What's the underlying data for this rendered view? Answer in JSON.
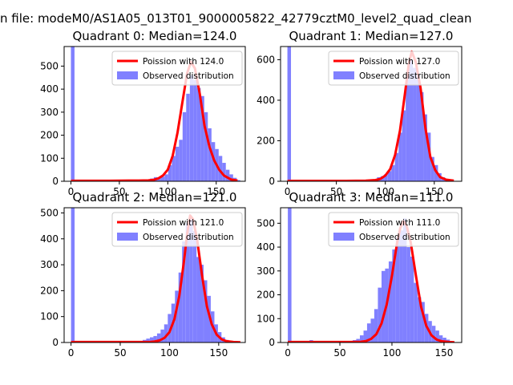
{
  "figure": {
    "suptitle": "n file: modeM0/AS1A05_013T01_9000005822_42779cztM0_level2_quad_clean"
  },
  "colors": {
    "bar": "#8080ff",
    "line": "#ff0000",
    "axis": "#000000",
    "background": "#ffffff"
  },
  "chart_data": [
    {
      "type": "bar",
      "title": "Quadrant 0: Median=124.0",
      "xlim": [
        -7,
        180
      ],
      "ylim": [
        0,
        585
      ],
      "xticks": [
        0,
        50,
        100,
        150
      ],
      "yticks": [
        0,
        100,
        200,
        300,
        400,
        500
      ],
      "legend": {
        "position": "top-right",
        "entries": [
          "Poission with 124.0",
          "Observed distribution"
        ]
      },
      "bin_width": 3.72,
      "histogram": {
        "x": [
          0,
          3.7,
          7.4,
          11.2,
          14.9,
          18.6,
          22.3,
          26.0,
          29.8,
          33.5,
          37.2,
          40.9,
          44.6,
          48.4,
          52.1,
          55.8,
          59.5,
          63.2,
          67.0,
          70.7,
          74.4,
          78.1,
          81.8,
          85.6,
          89.3,
          93.0,
          96.7,
          100.4,
          104.2,
          107.9,
          111.6,
          115.3,
          119.0,
          122.8,
          126.5,
          130.2,
          133.9,
          137.6,
          141.4,
          145.1,
          148.8,
          152.5,
          156.2,
          160.0,
          163.7,
          167.4,
          171.1
        ],
        "counts": [
          600,
          0,
          0,
          0,
          1,
          1,
          2,
          1,
          0,
          0,
          0,
          0,
          0,
          0,
          0,
          1,
          0,
          0,
          0,
          1,
          2,
          5,
          12,
          18,
          15,
          20,
          30,
          70,
          110,
          150,
          180,
          300,
          380,
          460,
          440,
          405,
          370,
          300,
          230,
          170,
          140,
          110,
          80,
          50,
          30,
          15,
          5
        ]
      },
      "fit": {
        "label": "Poission with 124.0",
        "x": [
          0,
          20,
          40,
          60,
          70,
          80,
          85,
          90,
          95,
          100,
          105,
          110,
          115,
          120,
          124,
          128,
          133,
          138,
          143,
          148,
          153,
          158,
          165,
          172
        ],
        "y": [
          2,
          2,
          2,
          3,
          3,
          4,
          6,
          12,
          25,
          50,
          110,
          210,
          340,
          470,
          518,
          490,
          380,
          240,
          150,
          90,
          50,
          25,
          8,
          3
        ]
      }
    },
    {
      "type": "bar",
      "title": "Quadrant 1: Median=127.0",
      "xlim": [
        -7,
        178
      ],
      "ylim": [
        0,
        665
      ],
      "xticks": [
        0,
        50,
        100,
        150
      ],
      "yticks": [
        0,
        200,
        400,
        600
      ],
      "legend": {
        "position": "top-right",
        "entries": [
          "Poission with 127.0",
          "Observed distribution"
        ]
      },
      "bin_width": 3.66,
      "histogram": {
        "x": [
          0,
          3.7,
          7.3,
          11.0,
          14.6,
          18.3,
          22.0,
          25.6,
          29.3,
          32.9,
          36.6,
          40.3,
          43.9,
          47.6,
          51.2,
          54.9,
          58.6,
          62.2,
          65.9,
          69.5,
          73.2,
          76.9,
          80.5,
          84.2,
          87.8,
          91.5,
          95.2,
          98.8,
          102.5,
          106.1,
          109.8,
          113.5,
          117.1,
          120.8,
          124.4,
          128.1,
          131.8,
          135.4,
          139.1,
          142.7,
          146.4,
          150.1,
          153.7,
          157.4,
          161.0,
          164.7
        ],
        "counts": [
          700,
          0,
          0,
          0,
          0,
          1,
          1,
          1,
          0,
          0,
          0,
          0,
          0,
          0,
          0,
          0,
          0,
          0,
          0,
          0,
          0,
          0,
          0,
          4,
          10,
          20,
          25,
          35,
          50,
          80,
          140,
          240,
          350,
          520,
          600,
          560,
          530,
          440,
          330,
          240,
          120,
          80,
          40,
          20,
          8,
          3
        ]
      },
      "fit": {
        "label": "Poission with 127.0",
        "x": [
          0,
          20,
          40,
          60,
          80,
          90,
          95,
          100,
          105,
          110,
          115,
          120,
          124,
          127,
          131,
          136,
          141,
          146,
          151,
          156,
          162,
          170
        ],
        "y": [
          2,
          2,
          2,
          2,
          3,
          6,
          12,
          28,
          60,
          130,
          250,
          430,
          580,
          640,
          590,
          460,
          260,
          120,
          55,
          20,
          8,
          3
        ]
      }
    },
    {
      "type": "bar",
      "title": "Quadrant 2: Median=121.0",
      "xlim": [
        -7,
        177
      ],
      "ylim": [
        0,
        520
      ],
      "xticks": [
        0,
        50,
        100,
        150
      ],
      "yticks": [
        0,
        100,
        200,
        300,
        400,
        500
      ],
      "legend": {
        "position": "top-right",
        "entries": [
          "Poission with 121.0",
          "Observed distribution"
        ]
      },
      "bin_width": 3.64,
      "histogram": {
        "x": [
          0,
          3.6,
          7.3,
          10.9,
          14.6,
          18.2,
          21.8,
          25.5,
          29.1,
          32.8,
          36.4,
          40.0,
          43.7,
          47.3,
          51.0,
          54.6,
          58.2,
          61.9,
          65.5,
          69.2,
          72.8,
          76.4,
          80.1,
          83.7,
          87.4,
          91.0,
          94.6,
          98.3,
          101.9,
          105.6,
          109.2,
          112.8,
          116.5,
          120.1,
          123.8,
          127.4,
          131.0,
          134.7,
          138.3,
          142.0,
          145.6,
          149.2,
          152.9,
          156.5,
          160.2,
          163.8,
          167.4
        ],
        "counts": [
          520,
          0,
          0,
          0,
          0,
          0,
          0,
          0,
          0,
          0,
          0,
          0,
          0,
          0,
          0,
          0,
          0,
          0,
          0,
          0,
          10,
          15,
          20,
          25,
          35,
          50,
          70,
          110,
          150,
          200,
          270,
          390,
          460,
          480,
          430,
          330,
          300,
          240,
          180,
          120,
          70,
          40,
          20,
          10,
          5,
          2,
          1
        ]
      },
      "fit": {
        "label": "Poission with 121.0",
        "x": [
          0,
          20,
          40,
          60,
          80,
          85,
          90,
          95,
          100,
          105,
          110,
          115,
          118,
          121,
          124,
          128,
          133,
          138,
          143,
          148,
          153,
          158,
          165,
          172
        ],
        "y": [
          2,
          2,
          2,
          2,
          2,
          4,
          8,
          18,
          40,
          90,
          180,
          320,
          420,
          490,
          475,
          400,
          260,
          140,
          70,
          30,
          12,
          5,
          2,
          1
        ]
      }
    },
    {
      "type": "bar",
      "title": "Quadrant 3: Median=111.0",
      "xlim": [
        -7,
        167
      ],
      "ylim": [
        0,
        565
      ],
      "xticks": [
        0,
        50,
        100,
        150
      ],
      "yticks": [
        0,
        100,
        200,
        300,
        400,
        500
      ],
      "legend": {
        "position": "top-right",
        "entries": [
          "Poission with 111.0",
          "Observed distribution"
        ]
      },
      "bin_width": 3.46,
      "histogram": {
        "x": [
          0,
          3.5,
          6.9,
          10.4,
          13.8,
          17.3,
          20.8,
          24.2,
          27.7,
          31.1,
          34.6,
          38.1,
          41.5,
          45.0,
          48.4,
          51.9,
          55.4,
          58.8,
          62.3,
          65.7,
          69.2,
          72.7,
          76.1,
          79.6,
          83.0,
          86.5,
          90.0,
          93.4,
          96.9,
          100.3,
          103.8,
          107.3,
          110.7,
          114.2,
          117.6,
          121.1,
          124.6,
          128.0,
          131.5,
          134.9,
          138.4,
          141.9,
          145.3,
          148.8,
          152.2,
          155.7
        ],
        "counts": [
          580,
          0,
          0,
          0,
          0,
          5,
          10,
          3,
          0,
          2,
          5,
          1,
          0,
          0,
          2,
          3,
          5,
          5,
          10,
          15,
          30,
          50,
          80,
          100,
          140,
          230,
          300,
          310,
          340,
          390,
          440,
          470,
          520,
          400,
          360,
          250,
          190,
          170,
          120,
          90,
          70,
          50,
          30,
          20,
          12,
          5
        ]
      },
      "fit": {
        "label": "Poission with 111.0",
        "x": [
          0,
          20,
          40,
          60,
          70,
          75,
          80,
          85,
          90,
          95,
          100,
          105,
          108,
          111,
          114,
          118,
          123,
          128,
          133,
          138,
          143,
          148,
          155,
          160
        ],
        "y": [
          2,
          2,
          2,
          2,
          3,
          6,
          15,
          35,
          80,
          160,
          280,
          420,
          480,
          508,
          490,
          420,
          280,
          150,
          70,
          30,
          12,
          5,
          2,
          1
        ]
      }
    }
  ]
}
